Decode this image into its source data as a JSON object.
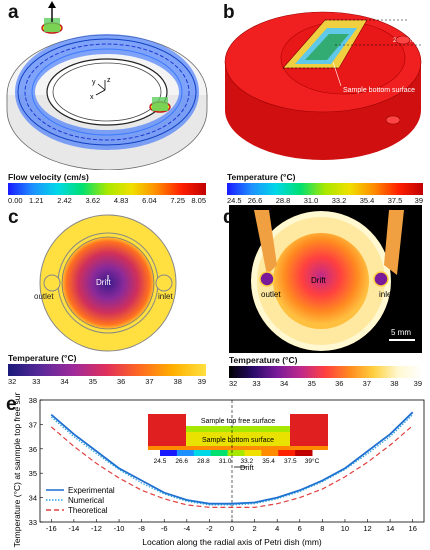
{
  "panels": {
    "a": {
      "label": "a",
      "axis_x": "x",
      "axis_y": "y",
      "axis_z": "z",
      "colorbar_title": "Flow velocity (cm/s)",
      "colorbar_ticks": [
        "0.00",
        "1.21",
        "2.42",
        "3.62",
        "4.83",
        "6.04",
        "7.25",
        "8.05"
      ],
      "colorbar_colors": [
        "#1a1aff",
        "#1e90ff",
        "#00d8e8",
        "#00e070",
        "#a8e800",
        "#f0e000",
        "#ff8c00",
        "#ff2000",
        "#c00000"
      ]
    },
    "b": {
      "label": "b",
      "dim_1": "17 mm",
      "dim_2": "20 mm",
      "annotation": "Sample bottom surface",
      "colorbar_title": "Temperature (°C)",
      "colorbar_ticks": [
        "24.5",
        "26.6",
        "28.8",
        "31.0",
        "33.2",
        "35.4",
        "37.5",
        "39"
      ],
      "colorbar_colors": [
        "#1a1aff",
        "#1e90ff",
        "#00d8e8",
        "#00e070",
        "#a8e800",
        "#f0e000",
        "#ff8c00",
        "#ff2000",
        "#c00000"
      ]
    },
    "c": {
      "label": "c",
      "outlet": "outlet",
      "inlet": "inlet",
      "drift": "Drift",
      "colorbar_title": "Temperature (°C)",
      "colorbar_ticks": [
        "32",
        "33",
        "34",
        "35",
        "36",
        "37",
        "38",
        "39"
      ],
      "colorbar_colors": [
        "#1a1a7a",
        "#5a2a9a",
        "#a02a9a",
        "#e0305a",
        "#ff6a20",
        "#ffb000",
        "#ffe040"
      ]
    },
    "d": {
      "label": "d",
      "outlet": "outlet",
      "inlet": "inlet",
      "drift": "Drift",
      "scalebar": "5 mm",
      "colorbar_title": "Temperature (°C)",
      "colorbar_ticks": [
        "32",
        "33",
        "34",
        "35",
        "36",
        "37",
        "38",
        "39"
      ],
      "colorbar_colors": [
        "#000000",
        "#2a0a6a",
        "#7a1a9a",
        "#c02a8a",
        "#ff4040",
        "#ff8a20",
        "#ffd040",
        "#fff8d0",
        "#ffffff"
      ]
    },
    "e": {
      "label": "e",
      "inset_top": "Sample top free surface",
      "inset_bottom": "Sample bottom surface",
      "inset_drift": "Drift",
      "inset_ticks": [
        "24.5",
        "26.6",
        "28.8",
        "31.0",
        "33.2",
        "35.4",
        "37.5",
        "39°C"
      ]
    }
  },
  "chart_data": {
    "type": "line",
    "title": "",
    "xlabel": "Location along the radial axis of Petri dish (mm)",
    "ylabel": "Temperature (°C) at sanmple top free surface",
    "xlim": [
      -17,
      17
    ],
    "ylim": [
      33,
      38
    ],
    "xticks": [
      -16,
      -14,
      -12,
      -10,
      -8,
      -6,
      -4,
      -2,
      0,
      2,
      4,
      6,
      8,
      10,
      12,
      14,
      16
    ],
    "yticks": [
      33,
      34,
      35,
      36,
      37,
      38
    ],
    "x": [
      -16,
      -14,
      -12,
      -10,
      -8,
      -6,
      -4,
      -2,
      0,
      2,
      4,
      6,
      8,
      10,
      12,
      14,
      16
    ],
    "series": [
      {
        "name": "Experimental",
        "color": "#1f6fd0",
        "style": "solid",
        "values": [
          37.4,
          36.6,
          35.9,
          35.2,
          34.7,
          34.2,
          33.9,
          33.75,
          33.75,
          33.8,
          34.0,
          34.3,
          34.7,
          35.2,
          35.9,
          36.6,
          37.5
        ]
      },
      {
        "name": "Numerical",
        "color": "#2aa0e0",
        "style": "dotted",
        "values": [
          37.3,
          36.5,
          35.8,
          35.15,
          34.6,
          34.15,
          33.85,
          33.7,
          33.7,
          33.75,
          33.95,
          34.25,
          34.65,
          35.15,
          35.8,
          36.5,
          37.4
        ]
      },
      {
        "name": "Theoretical",
        "color": "#e04040",
        "style": "dashed",
        "values": [
          36.9,
          36.1,
          35.4,
          34.8,
          34.3,
          33.95,
          33.7,
          33.6,
          33.6,
          33.6,
          33.75,
          34.0,
          34.35,
          34.85,
          35.45,
          36.15,
          36.95
        ]
      }
    ],
    "legend_position": "bottom-left",
    "grid": false
  }
}
